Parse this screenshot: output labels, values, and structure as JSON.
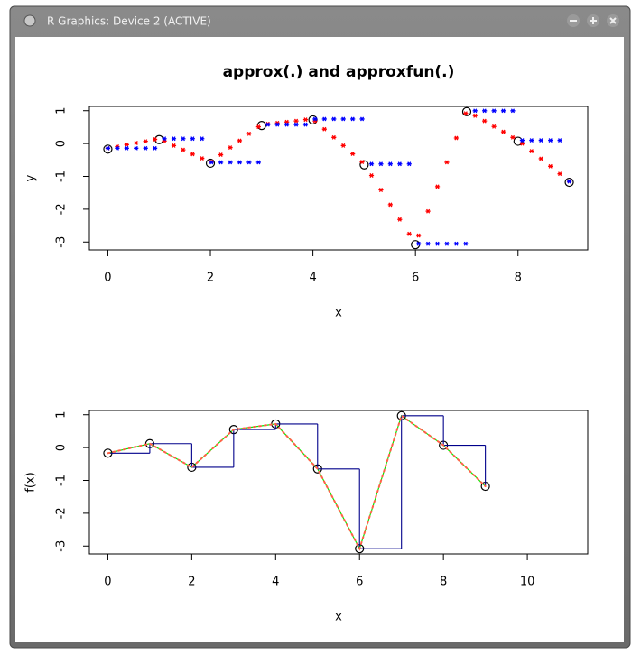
{
  "window": {
    "title": "R Graphics: Device 2 (ACTIVE)"
  },
  "chart_data": [
    {
      "type": "scatter",
      "title": "approx(.) and approxfun(.)",
      "x_label": "x",
      "y_label": "y",
      "xlim": [
        -0.36,
        9.36
      ],
      "ylim": [
        -3.24,
        1.13
      ],
      "xticks": [
        0,
        2,
        4,
        6,
        8
      ],
      "yticks": [
        -3,
        -2,
        -1,
        0,
        1
      ],
      "series": [
        {
          "color": "#000000",
          "marker": "circle",
          "x": [
            0,
            1,
            2,
            3,
            4,
            5,
            6,
            7,
            8,
            9
          ],
          "values": [
            -0.17,
            0.12,
            -0.6,
            0.55,
            0.72,
            -0.65,
            -3.08,
            0.97,
            0.07,
            -1.18
          ]
        },
        {
          "color": "#ff0000",
          "marker": "star",
          "x": [
            0,
            0.184,
            0.367,
            0.551,
            0.735,
            0.918,
            1.102,
            1.286,
            1.469,
            1.653,
            1.837,
            2.02,
            2.204,
            2.388,
            2.571,
            2.755,
            2.939,
            3.122,
            3.306,
            3.49,
            3.673,
            3.857,
            4.041,
            4.224,
            4.408,
            4.592,
            4.776,
            4.959,
            5.143,
            5.327,
            5.51,
            5.694,
            5.878,
            6.061,
            6.245,
            6.429,
            6.612,
            6.796,
            6.98,
            7.163,
            7.347,
            7.531,
            7.714,
            7.898,
            8.082,
            8.265,
            8.449,
            8.633,
            8.816,
            9
          ],
          "values": [
            -0.17,
            -0.12,
            -0.06,
            -0.01,
            0.04,
            0.1,
            0.05,
            -0.09,
            -0.22,
            -0.35,
            -0.48,
            -0.58,
            -0.37,
            -0.15,
            0.06,
            0.27,
            0.48,
            0.57,
            0.6,
            0.63,
            0.66,
            0.7,
            0.66,
            0.41,
            0.16,
            -0.09,
            -0.34,
            -0.59,
            -1.0,
            -1.44,
            -1.89,
            -2.34,
            -2.78,
            -2.83,
            -2.09,
            -1.34,
            -0.6,
            0.14,
            0.89,
            0.82,
            0.66,
            0.49,
            0.33,
            0.16,
            -0.03,
            -0.26,
            -0.49,
            -0.72,
            -0.95,
            -1.18
          ]
        },
        {
          "color": "#0000ff",
          "marker": "star",
          "x": [
            0,
            0.184,
            0.367,
            0.551,
            0.735,
            0.918,
            1.102,
            1.286,
            1.469,
            1.653,
            1.837,
            2.02,
            2.204,
            2.388,
            2.571,
            2.755,
            2.939,
            3.122,
            3.306,
            3.49,
            3.673,
            3.857,
            4.041,
            4.224,
            4.408,
            4.592,
            4.776,
            4.959,
            5.143,
            5.327,
            5.51,
            5.694,
            5.878,
            6.061,
            6.245,
            6.429,
            6.612,
            6.796,
            6.98,
            7.163,
            7.347,
            7.531,
            7.714,
            7.898,
            8.082,
            8.265,
            8.449,
            8.633,
            8.816,
            9
          ],
          "values": [
            -0.17,
            -0.17,
            -0.17,
            -0.17,
            -0.17,
            -0.17,
            0.12,
            0.12,
            0.12,
            0.12,
            0.12,
            -0.6,
            -0.6,
            -0.6,
            -0.6,
            -0.6,
            -0.6,
            0.55,
            0.55,
            0.55,
            0.55,
            0.55,
            0.72,
            0.72,
            0.72,
            0.72,
            0.72,
            0.72,
            -0.65,
            -0.65,
            -0.65,
            -0.65,
            -0.65,
            -3.08,
            -3.08,
            -3.08,
            -3.08,
            -3.08,
            -3.08,
            0.97,
            0.97,
            0.97,
            0.97,
            0.97,
            0.07,
            0.07,
            0.07,
            0.07,
            0.07,
            -1.18
          ]
        }
      ]
    },
    {
      "type": "line",
      "x_label": "x",
      "y_label": "f(x)",
      "xlim": [
        -0.44,
        11.44
      ],
      "ylim": [
        -3.24,
        1.13
      ],
      "xticks": [
        0,
        2,
        4,
        6,
        8,
        10
      ],
      "yticks": [
        -3,
        -2,
        -1,
        0,
        1
      ],
      "series": [
        {
          "color": "#00ee00",
          "line_style": "solid",
          "x": [
            0,
            1,
            2,
            3,
            4,
            5,
            6,
            7,
            8,
            9
          ],
          "values": [
            -0.17,
            0.12,
            -0.6,
            0.55,
            0.72,
            -0.65,
            -3.08,
            0.97,
            0.07,
            -1.18
          ]
        },
        {
          "color": "#000000",
          "marker": "circle",
          "x": [
            0,
            1,
            2,
            3,
            4,
            5,
            6,
            7,
            8,
            9
          ],
          "values": [
            -0.17,
            0.12,
            -0.6,
            0.55,
            0.72,
            -0.65,
            -3.08,
            0.97,
            0.07,
            -1.18
          ]
        },
        {
          "color": "#00008b",
          "line_style": "step",
          "x": [
            0,
            1,
            2,
            3,
            4,
            5,
            6,
            7,
            8,
            9
          ],
          "values": [
            -0.17,
            0.12,
            -0.6,
            0.55,
            0.72,
            -0.65,
            -3.08,
            0.97,
            0.07,
            -1.18
          ]
        },
        {
          "color": "#ff6347",
          "line_style": "dotted",
          "x": [
            0,
            1,
            2,
            3,
            4,
            5,
            6,
            7,
            8,
            9
          ],
          "values": [
            -0.17,
            0.12,
            -0.6,
            0.55,
            0.72,
            -0.65,
            -3.08,
            0.97,
            0.07,
            -1.18
          ]
        }
      ]
    }
  ]
}
